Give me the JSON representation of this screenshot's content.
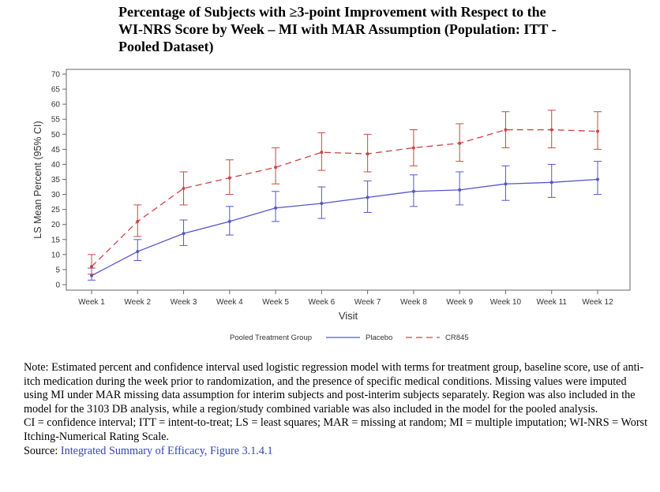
{
  "title_lines": [
    "Percentage of Subjects with ≥3-point Improvement with Respect to the",
    "WI-NRS Score by Week – MI with MAR Assumption (Population: ITT -",
    "Pooled Dataset)"
  ],
  "chart_data": {
    "type": "line",
    "xlabel": "Visit",
    "ylabel": "LS Mean Percent (95% CI)",
    "ylim": [
      0,
      70
    ],
    "yticks": [
      0,
      5,
      10,
      15,
      20,
      25,
      30,
      35,
      40,
      45,
      50,
      55,
      60,
      65,
      70
    ],
    "categories": [
      "Week 1",
      "Week 2",
      "Week 3",
      "Week 4",
      "Week 5",
      "Week 6",
      "Week 7",
      "Week 8",
      "Week 9",
      "Week 10",
      "Week 11",
      "Week 12"
    ],
    "legend_title": "Pooled Treatment Group",
    "legend_position": "bottom",
    "grid": false,
    "series": [
      {
        "name": "Placebo",
        "color": "#5555cc",
        "line_style": "solid",
        "values": [
          3,
          11,
          17,
          21,
          25.5,
          27,
          29,
          31,
          31.5,
          33.5,
          34,
          35
        ],
        "lower": [
          1.5,
          8,
          13,
          16.5,
          21,
          22,
          24,
          26,
          26.5,
          28,
          29,
          30
        ],
        "upper": [
          5.5,
          15,
          21.5,
          26,
          31,
          32.5,
          34.5,
          36.5,
          37.5,
          39.5,
          40,
          41
        ]
      },
      {
        "name": "CR845",
        "color": "#cc4444",
        "line_style": "dashed",
        "values": [
          6,
          21,
          32,
          35.5,
          39,
          44,
          43.5,
          45.5,
          47,
          51.5,
          51.5,
          51
        ],
        "lower": [
          3.5,
          16,
          26.5,
          30,
          33.5,
          38,
          37.5,
          39.5,
          41,
          45.5,
          45.5,
          45
        ],
        "upper": [
          10,
          26.5,
          37.5,
          41.5,
          45.5,
          50.5,
          50,
          51.5,
          53.5,
          57.5,
          58,
          57.5
        ]
      }
    ]
  },
  "note": {
    "paragraph": "Note: Estimated percent and confidence interval used logistic regression model with terms for treatment group, baseline score, use of anti-itch medication during the week prior to randomization, and the presence of specific medical conditions. Missing values were imputed using MI under MAR missing data assumption for interim subjects and post-interim subjects separately. Region was also included in the model for the 3103 DB analysis, while a region/study combined variable was also included in the model for the pooled analysis.",
    "abbreviations": "CI = confidence interval; ITT = intent-to-treat; LS = least squares; MAR = missing at random; MI = multiple imputation; WI-NRS = Worst Itching-Numerical Rating Scale.",
    "source_label": "Source:",
    "source_link": "Integrated Summary of Efficacy, Figure 3.1.4.1"
  }
}
